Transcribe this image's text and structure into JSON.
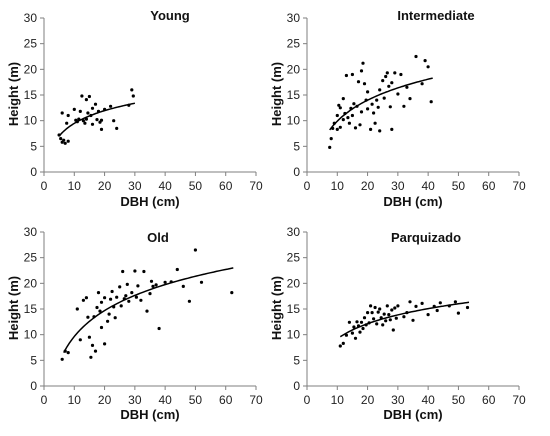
{
  "chart_data": [
    {
      "type": "scatter",
      "title": "Young",
      "xlabel": "DBH (cm)",
      "ylabel": "Height (m)",
      "xlim": [
        0,
        70
      ],
      "ylim": [
        0,
        30
      ],
      "xticks": [
        "0",
        "10",
        "20",
        "30",
        "40",
        "50",
        "60",
        "70"
      ],
      "yticks": [
        "0",
        "5",
        "10",
        "15",
        "20",
        "25",
        "30"
      ],
      "grid": false,
      "points": [
        [
          5,
          7.2
        ],
        [
          5.5,
          6.5
        ],
        [
          6,
          5.8
        ],
        [
          6,
          11.5
        ],
        [
          6.5,
          6.2
        ],
        [
          7,
          5.6
        ],
        [
          7.5,
          9.5
        ],
        [
          8,
          6
        ],
        [
          8,
          11
        ],
        [
          10,
          12.2
        ],
        [
          10.5,
          10.1
        ],
        [
          11,
          9.8
        ],
        [
          11.5,
          10.3
        ],
        [
          12,
          11.8
        ],
        [
          12.5,
          14.8
        ],
        [
          13,
          10
        ],
        [
          13.5,
          9.5
        ],
        [
          14,
          14.1
        ],
        [
          14,
          10.3
        ],
        [
          14.5,
          11.5
        ],
        [
          15,
          14.7
        ],
        [
          15.5,
          11
        ],
        [
          16,
          12.4
        ],
        [
          16,
          9.3
        ],
        [
          17,
          13.2
        ],
        [
          17.5,
          10.2
        ],
        [
          18,
          11.8
        ],
        [
          18.5,
          9.7
        ],
        [
          19,
          10.1
        ],
        [
          19,
          8.3
        ],
        [
          20,
          12.2
        ],
        [
          22,
          12.8
        ],
        [
          23,
          10
        ],
        [
          24,
          8.5
        ],
        [
          28,
          13
        ],
        [
          29,
          16
        ],
        [
          29.5,
          14.8
        ]
      ],
      "trend": {
        "model": "log",
        "x_range": [
          5,
          30
        ],
        "y_start": 7,
        "y_end": 13.4
      }
    },
    {
      "type": "scatter",
      "title": "Intermediate",
      "xlabel": "DBH (cm)",
      "ylabel": "Height (m)",
      "xlim": [
        0,
        70
      ],
      "ylim": [
        0,
        30
      ],
      "xticks": [
        "0",
        "10",
        "20",
        "30",
        "40",
        "50",
        "60",
        "70"
      ],
      "yticks": [
        "0",
        "5",
        "10",
        "15",
        "20",
        "25",
        "30"
      ],
      "grid": false,
      "points": [
        [
          7.5,
          4.8
        ],
        [
          8,
          6.5
        ],
        [
          8.5,
          8.5
        ],
        [
          9,
          9.5
        ],
        [
          10,
          8.3
        ],
        [
          10,
          11
        ],
        [
          10.5,
          13
        ],
        [
          11,
          12.5
        ],
        [
          11,
          8.7
        ],
        [
          12,
          10.2
        ],
        [
          12,
          14.3
        ],
        [
          12.5,
          11.4
        ],
        [
          13,
          18.8
        ],
        [
          13.5,
          10.6
        ],
        [
          14,
          9.5
        ],
        [
          14.5,
          12.4
        ],
        [
          15,
          19
        ],
        [
          15,
          11
        ],
        [
          15.5,
          13.3
        ],
        [
          16,
          8.6
        ],
        [
          16.5,
          12.8
        ],
        [
          17,
          17.6
        ],
        [
          17.5,
          9.2
        ],
        [
          18,
          19.7
        ],
        [
          18,
          11.7
        ],
        [
          18.5,
          21.2
        ],
        [
          19,
          17.2
        ],
        [
          19.5,
          14
        ],
        [
          20,
          12.3
        ],
        [
          20,
          15.6
        ],
        [
          21,
          8.3
        ],
        [
          21.5,
          13.2
        ],
        [
          22,
          11.5
        ],
        [
          22.5,
          9.5
        ],
        [
          23,
          14
        ],
        [
          23.5,
          12.6
        ],
        [
          24,
          16
        ],
        [
          24,
          8
        ],
        [
          25,
          17.8
        ],
        [
          25.5,
          14.4
        ],
        [
          26,
          18.6
        ],
        [
          26.5,
          19.3
        ],
        [
          27,
          16.7
        ],
        [
          27.5,
          12.7
        ],
        [
          28,
          8.3
        ],
        [
          28,
          17.4
        ],
        [
          29,
          19.3
        ],
        [
          30,
          15.2
        ],
        [
          31,
          19
        ],
        [
          32,
          12.8
        ],
        [
          33,
          16.5
        ],
        [
          34,
          14.3
        ],
        [
          36,
          22.5
        ],
        [
          38,
          17.2
        ],
        [
          39,
          21.7
        ],
        [
          40,
          20.5
        ],
        [
          41,
          13.7
        ]
      ],
      "trend": {
        "model": "log",
        "x_range": [
          7.5,
          41.5
        ],
        "y_start": 8.2,
        "y_end": 18.3
      }
    },
    {
      "type": "scatter",
      "title": "Old",
      "xlabel": "DBH (cm)",
      "ylabel": "Height (m)",
      "xlim": [
        0,
        70
      ],
      "ylim": [
        0,
        30
      ],
      "xticks": [
        "0",
        "10",
        "20",
        "30",
        "40",
        "50",
        "60",
        "70"
      ],
      "yticks": [
        "0",
        "5",
        "10",
        "15",
        "20",
        "25",
        "30"
      ],
      "grid": false,
      "points": [
        [
          6,
          5.2
        ],
        [
          7,
          6.8
        ],
        [
          8,
          6.5
        ],
        [
          11,
          15
        ],
        [
          12,
          9
        ],
        [
          13,
          16.7
        ],
        [
          14,
          17.2
        ],
        [
          14.5,
          13.4
        ],
        [
          15,
          9.5
        ],
        [
          15.5,
          5.6
        ],
        [
          16,
          7.9
        ],
        [
          16.5,
          13.5
        ],
        [
          17,
          6.8
        ],
        [
          17.5,
          15.3
        ],
        [
          18,
          18.2
        ],
        [
          18.5,
          14.6
        ],
        [
          19,
          11.4
        ],
        [
          19,
          16.3
        ],
        [
          20,
          8.2
        ],
        [
          20,
          17.2
        ],
        [
          21,
          12.6
        ],
        [
          21.5,
          14
        ],
        [
          22,
          16.9
        ],
        [
          22.5,
          18.4
        ],
        [
          23,
          15.4
        ],
        [
          23.5,
          13.3
        ],
        [
          24,
          17.3
        ],
        [
          25,
          19.3
        ],
        [
          25.5,
          15.6
        ],
        [
          26,
          22.3
        ],
        [
          26.5,
          17
        ],
        [
          27,
          17.6
        ],
        [
          27.5,
          19.8
        ],
        [
          28,
          16.5
        ],
        [
          29,
          18.2
        ],
        [
          30,
          22.4
        ],
        [
          30.5,
          17.3
        ],
        [
          31,
          19.5
        ],
        [
          32,
          16.7
        ],
        [
          33,
          22.3
        ],
        [
          34,
          14.6
        ],
        [
          35,
          18
        ],
        [
          35.5,
          20.4
        ],
        [
          36,
          19.4
        ],
        [
          37,
          19.7
        ],
        [
          38,
          11.2
        ],
        [
          40,
          20.2
        ],
        [
          42,
          20.3
        ],
        [
          44,
          22.7
        ],
        [
          46,
          19.4
        ],
        [
          48,
          16.5
        ],
        [
          50,
          26.5
        ],
        [
          52,
          20.2
        ],
        [
          62,
          18.2
        ]
      ],
      "trend": {
        "model": "log",
        "x_range": [
          6.5,
          62.5
        ],
        "y_start": 6.5,
        "y_end": 23
      }
    },
    {
      "type": "scatter",
      "title": "Parquizado",
      "xlabel": "DBH (cm)",
      "ylabel": "Height (m)",
      "xlim": [
        0,
        70
      ],
      "ylim": [
        0,
        30
      ],
      "xticks": [
        "0",
        "10",
        "20",
        "30",
        "40",
        "50",
        "60",
        "70"
      ],
      "yticks": [
        "0",
        "5",
        "10",
        "15",
        "20",
        "25",
        "30"
      ],
      "grid": false,
      "points": [
        [
          11,
          7.8
        ],
        [
          12,
          8.3
        ],
        [
          13,
          9.9
        ],
        [
          14,
          12.4
        ],
        [
          15,
          10.3
        ],
        [
          15.5,
          11.5
        ],
        [
          16,
          9.3
        ],
        [
          16.5,
          12.5
        ],
        [
          17,
          11.7
        ],
        [
          17.5,
          10.5
        ],
        [
          18,
          12.4
        ],
        [
          18.5,
          11.2
        ],
        [
          19,
          13.3
        ],
        [
          19.5,
          11.9
        ],
        [
          20,
          14.3
        ],
        [
          20.5,
          12.3
        ],
        [
          21,
          15.6
        ],
        [
          21.5,
          14.3
        ],
        [
          22,
          13.1
        ],
        [
          22.5,
          15.3
        ],
        [
          23,
          12.1
        ],
        [
          23.5,
          14.4
        ],
        [
          24,
          15
        ],
        [
          24.5,
          13.3
        ],
        [
          25,
          11.9
        ],
        [
          25.5,
          14
        ],
        [
          26,
          12.7
        ],
        [
          26.5,
          15.6
        ],
        [
          27,
          13.9
        ],
        [
          27.5,
          12.9
        ],
        [
          28,
          14.8
        ],
        [
          28.5,
          10.9
        ],
        [
          29,
          15.2
        ],
        [
          29.5,
          13.2
        ],
        [
          30,
          15.6
        ],
        [
          32,
          13.5
        ],
        [
          33,
          14.3
        ],
        [
          34,
          16.4
        ],
        [
          35,
          12.8
        ],
        [
          36,
          15.5
        ],
        [
          38,
          16.1
        ],
        [
          40,
          13.9
        ],
        [
          42,
          15.5
        ],
        [
          43,
          14.7
        ],
        [
          44,
          16.2
        ],
        [
          47,
          15.6
        ],
        [
          49,
          16.4
        ],
        [
          50,
          14.2
        ],
        [
          53,
          15.3
        ]
      ],
      "trend": {
        "model": "log",
        "x_range": [
          11,
          53.5
        ],
        "y_start": 9.6,
        "y_end": 16.3
      }
    }
  ]
}
